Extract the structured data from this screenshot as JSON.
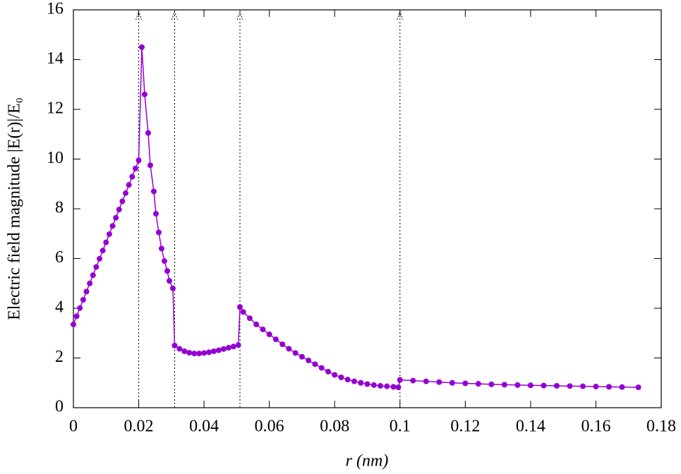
{
  "chart_data": {
    "type": "line",
    "xlabel": "r (nm)",
    "ylabel": "Electric field magnitude |E(r)|/E₀",
    "xlim": [
      0,
      0.18
    ],
    "xticks": [
      0,
      0.02,
      0.04,
      0.06,
      0.08,
      0.1,
      0.12,
      0.14,
      0.16,
      0.18
    ],
    "ylim": [
      0,
      16
    ],
    "yticks": [
      0,
      2,
      4,
      6,
      8,
      10,
      12,
      14,
      16
    ],
    "boundaries": [
      0.02,
      0.031,
      0.051,
      0.1
    ],
    "series": [
      {
        "color": "#9400d3",
        "x": [
          0,
          0.001,
          0.002,
          0.003,
          0.004,
          0.005,
          0.006,
          0.007,
          0.008,
          0.009,
          0.01,
          0.011,
          0.012,
          0.013,
          0.014,
          0.015,
          0.016,
          0.017,
          0.018,
          0.019,
          0.02,
          0.02096,
          0.02182,
          0.0229,
          0.02355,
          0.02463,
          0.02528,
          0.02614,
          0.027,
          0.02787,
          0.02874,
          0.02939,
          0.03047,
          0.031,
          0.0325,
          0.034,
          0.0355,
          0.037,
          0.0385,
          0.04,
          0.0415,
          0.043,
          0.0445,
          0.046,
          0.0475,
          0.049,
          0.0505,
          0.051,
          0.052,
          0.054,
          0.056,
          0.058,
          0.06,
          0.062,
          0.064,
          0.066,
          0.068,
          0.07,
          0.072,
          0.074,
          0.076,
          0.078,
          0.08,
          0.082,
          0.084,
          0.086,
          0.088,
          0.09,
          0.092,
          0.094,
          0.096,
          0.098,
          0.0995,
          0.1,
          0.104,
          0.108,
          0.112,
          0.116,
          0.12,
          0.124,
          0.128,
          0.132,
          0.136,
          0.14,
          0.144,
          0.148,
          0.152,
          0.156,
          0.16,
          0.164,
          0.168,
          0.173
        ],
        "values": [
          3.35,
          3.68,
          4.01,
          4.34,
          4.67,
          5.0,
          5.33,
          5.66,
          5.99,
          6.32,
          6.65,
          6.98,
          7.31,
          7.64,
          7.97,
          8.3,
          8.63,
          8.96,
          9.29,
          9.62,
          9.95,
          14.5,
          12.6,
          11.05,
          9.75,
          8.7,
          7.8,
          7.05,
          6.4,
          5.9,
          5.5,
          5.1,
          4.8,
          2.5,
          2.37,
          2.27,
          2.21,
          2.18,
          2.18,
          2.2,
          2.23,
          2.27,
          2.31,
          2.36,
          2.41,
          2.46,
          2.52,
          4.05,
          3.85,
          3.6,
          3.35,
          3.15,
          2.95,
          2.75,
          2.55,
          2.37,
          2.2,
          2.05,
          1.9,
          1.75,
          1.6,
          1.45,
          1.32,
          1.22,
          1.13,
          1.06,
          1.0,
          0.95,
          0.91,
          0.88,
          0.86,
          0.84,
          0.82,
          1.12,
          1.09,
          1.06,
          1.03,
          1.0,
          0.98,
          0.96,
          0.94,
          0.925,
          0.91,
          0.9,
          0.89,
          0.88,
          0.87,
          0.86,
          0.85,
          0.84,
          0.83,
          0.82
        ]
      }
    ]
  }
}
